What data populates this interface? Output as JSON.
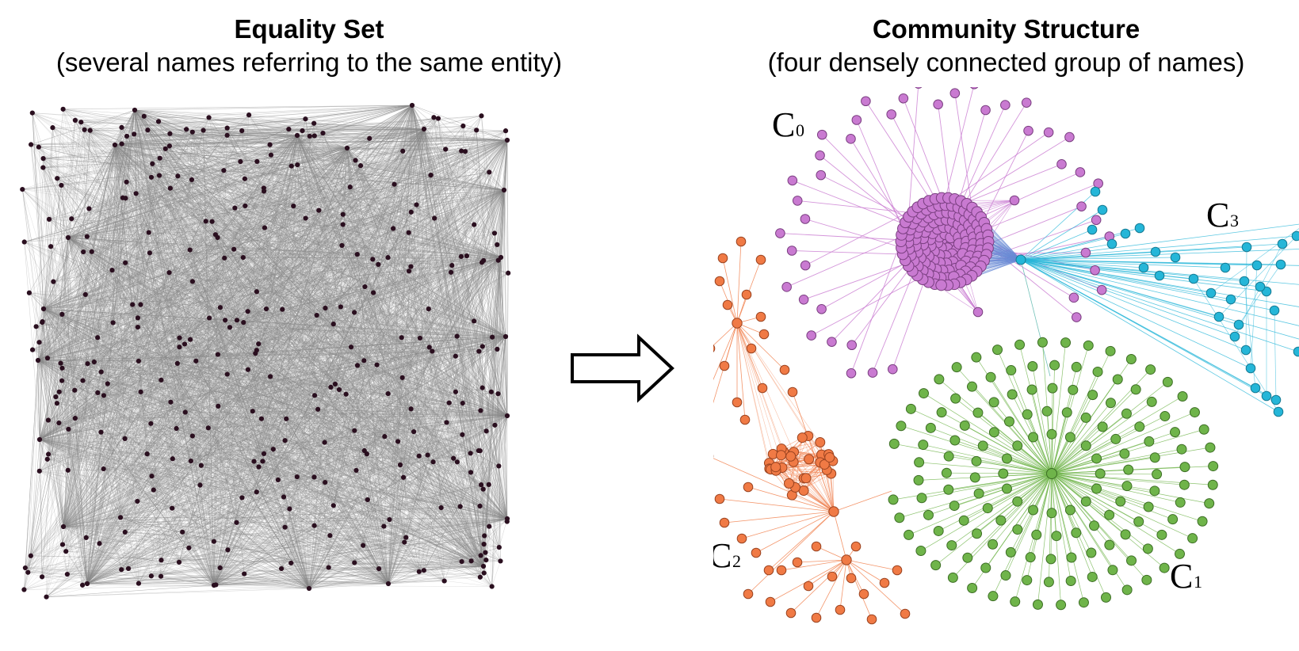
{
  "left_panel": {
    "title": "Equality Set",
    "subtitle": "(several names referring to the same entity)",
    "node_color": "#2a0f1f",
    "edge_color": "#8a8a8a"
  },
  "right_panel": {
    "title": "Community Structure",
    "subtitle": "(four densely connected group of names)",
    "communities": [
      {
        "label": "C",
        "sub": "0",
        "color": "#c97ad1",
        "stroke": "#7a3f80"
      },
      {
        "label": "C",
        "sub": "1",
        "color": "#6fb44a",
        "stroke": "#3d6e25"
      },
      {
        "label": "C",
        "sub": "2",
        "color": "#f07a45",
        "stroke": "#9a4320"
      },
      {
        "label": "C",
        "sub": "3",
        "color": "#25b6d8",
        "stroke": "#157a93"
      }
    ]
  },
  "arrow": {
    "icon": "right-arrow-icon"
  }
}
